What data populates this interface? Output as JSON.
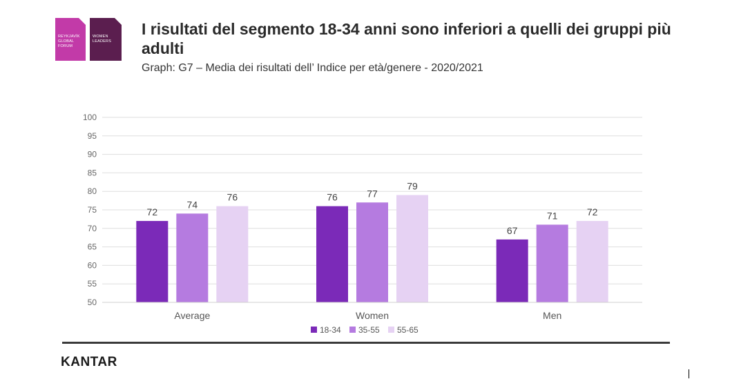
{
  "logo": {
    "left_text": "REYKJAVÍK\nGLOBAL\nFORUM",
    "right_text": "WOMEN\nLEADERS"
  },
  "header": {
    "title": "I risultati del segmento 18-34 anni sono inferiori a quelli dei gruppi più adulti",
    "subtitle": "Graph: G7 – Media dei risultati dell’ Indice per età/genere - 2020/2021"
  },
  "footer": {
    "brand": "KANTAR"
  },
  "chart_data": {
    "type": "bar",
    "title": "",
    "xlabel": "",
    "ylabel": "",
    "categories": [
      "Average",
      "Women",
      "Men"
    ],
    "series": [
      {
        "name": "18-34",
        "values": [
          72,
          76,
          67
        ],
        "color": "#7b2ab8"
      },
      {
        "name": "35-55",
        "values": [
          74,
          77,
          71
        ],
        "color": "#b57be0"
      },
      {
        "name": "55-65",
        "values": [
          76,
          79,
          72
        ],
        "color": "#e6d2f3"
      }
    ],
    "ylim": [
      50,
      100
    ],
    "yticks": [
      50,
      55,
      60,
      65,
      70,
      75,
      80,
      85,
      90,
      95,
      100
    ],
    "grid": true,
    "data_labels": true,
    "legend_position": "bottom"
  }
}
